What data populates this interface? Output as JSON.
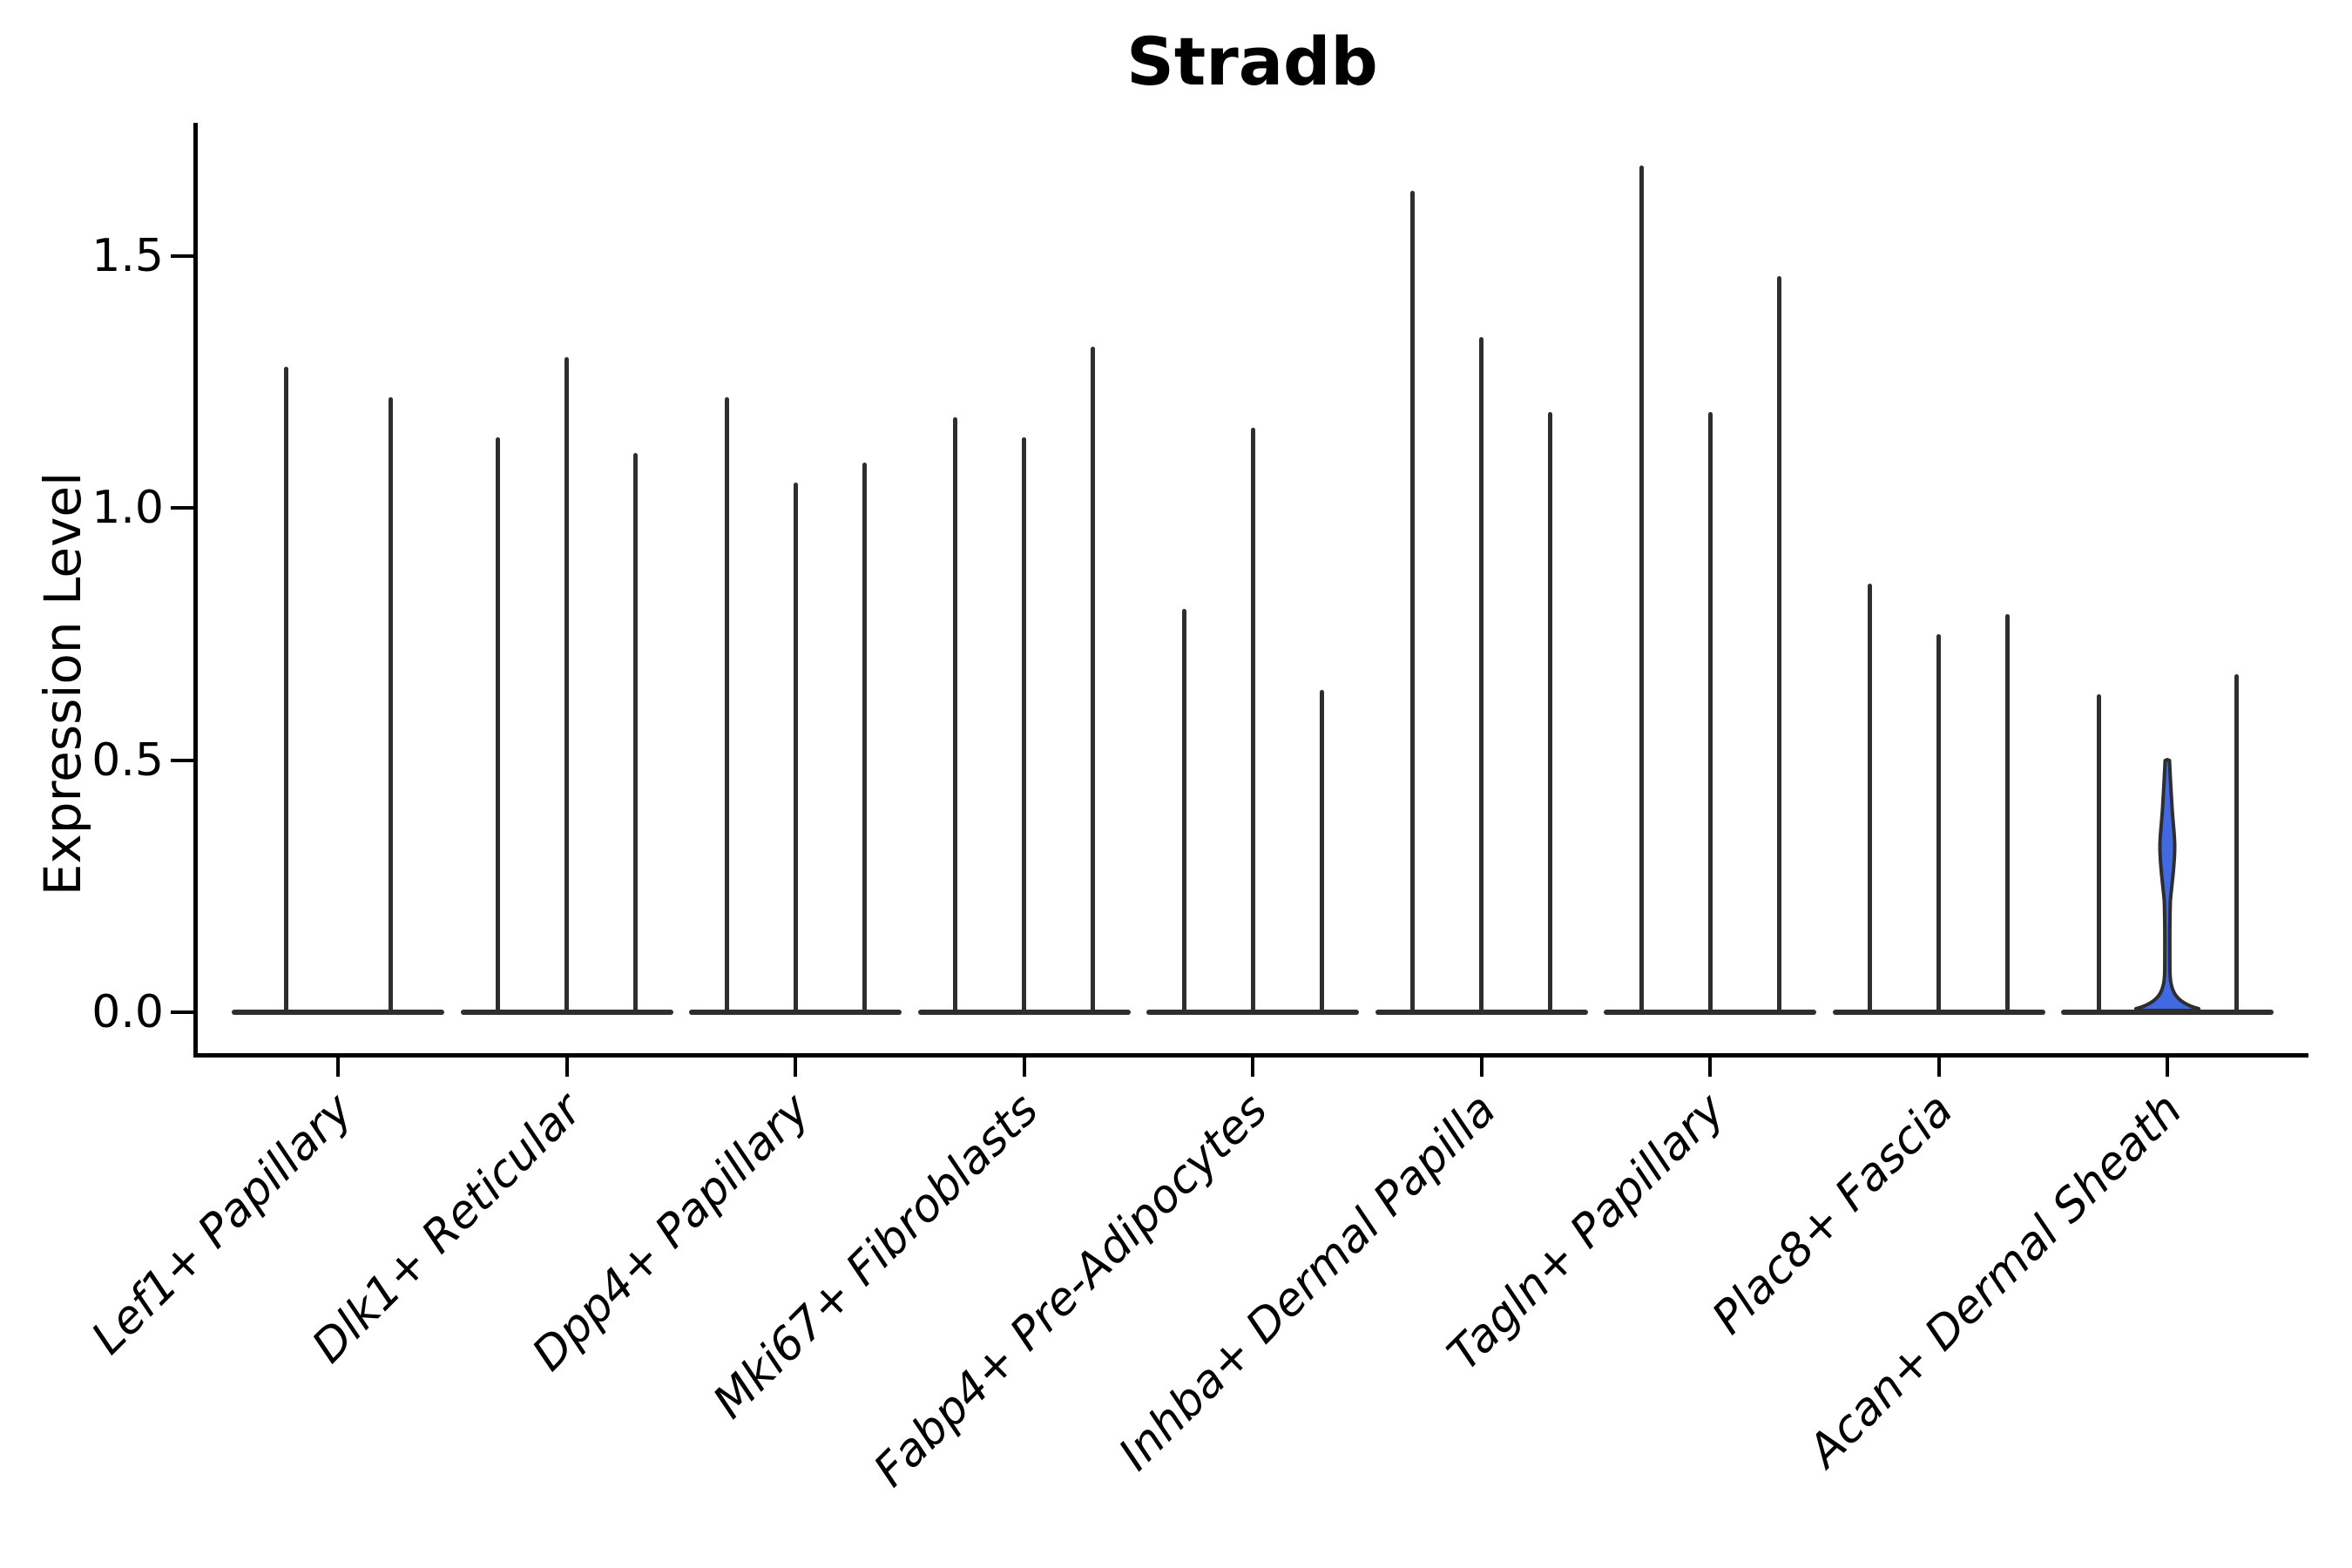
{
  "title": "Stradb",
  "y_axis": {
    "label": "Expression Level",
    "ticks": [
      "0.0",
      "0.5",
      "1.0",
      "1.5"
    ],
    "tick_values": [
      0.0,
      0.5,
      1.0,
      1.5
    ]
  },
  "chart_data": {
    "type": "violin",
    "title": "Stradb",
    "xlabel": "",
    "ylabel": "Expression Level",
    "ylim": [
      -0.08,
      1.76
    ],
    "grid": false,
    "legend": "none",
    "description": "Single-gene expression violin plot (Stradb) across 9 fibroblast cell-type groups; each group contains 2-3 extremely thin violins (near-zero density except a spike to the max expression and a flat base at 0). Only the middle violin of the last group shows a visible filled shape.",
    "colors": {
      "violin_stroke": "#2e2e2e",
      "highlight_fill": "#4169e1",
      "axis": "#000000"
    },
    "categories": [
      "Lef1+ Papillary",
      "Dlk1+ Reticular",
      "Dpp4+ Papillary",
      "Mki67+ Fibroblasts",
      "Fabp4+ Pre-Adipocytes",
      "Inhba+ Dermal Papilla",
      "Tagln+ Papillary",
      "Plac8+ Fascia",
      "Acan+ Dermal Sheath"
    ],
    "groups": [
      {
        "category": "Lef1+ Papillary",
        "violins": [
          {
            "offset": -60,
            "max": 1.28
          },
          {
            "offset": 60,
            "max": 1.22
          }
        ]
      },
      {
        "category": "Dlk1+ Reticular",
        "violins": [
          {
            "offset": -79,
            "max": 1.14
          },
          {
            "offset": 0,
            "max": 1.3
          },
          {
            "offset": 79,
            "max": 1.11
          }
        ]
      },
      {
        "category": "Dpp4+ Papillary",
        "violins": [
          {
            "offset": -79,
            "max": 1.22
          },
          {
            "offset": 0,
            "max": 1.05
          },
          {
            "offset": 79,
            "max": 1.09
          }
        ]
      },
      {
        "category": "Mki67+ Fibroblasts",
        "violins": [
          {
            "offset": -79,
            "max": 1.18
          },
          {
            "offset": 0,
            "max": 1.14
          },
          {
            "offset": 79,
            "max": 1.32
          }
        ]
      },
      {
        "category": "Fabp4+ Pre-Adipocytes",
        "violins": [
          {
            "offset": -79,
            "max": 0.8
          },
          {
            "offset": 0,
            "max": 1.16
          },
          {
            "offset": 79,
            "max": 0.64
          }
        ]
      },
      {
        "category": "Inhba+ Dermal Papilla",
        "violins": [
          {
            "offset": -79,
            "max": 1.63
          },
          {
            "offset": 0,
            "max": 1.34
          },
          {
            "offset": 79,
            "max": 1.19
          }
        ]
      },
      {
        "category": "Tagln+ Papillary",
        "violins": [
          {
            "offset": -79,
            "max": 1.68
          },
          {
            "offset": 0,
            "max": 1.19
          },
          {
            "offset": 79,
            "max": 1.46
          }
        ]
      },
      {
        "category": "Plac8+ Fascia",
        "violins": [
          {
            "offset": -79,
            "max": 0.85
          },
          {
            "offset": 0,
            "max": 0.75
          },
          {
            "offset": 79,
            "max": 0.79
          }
        ]
      },
      {
        "category": "Acan+ Dermal Sheath",
        "violins": [
          {
            "offset": -79,
            "max": 0.63
          },
          {
            "offset": 0,
            "max": 0.5,
            "filled": true,
            "bulge_range": [
              0.24,
              0.42
            ]
          },
          {
            "offset": 79,
            "max": 0.67
          }
        ]
      }
    ]
  }
}
